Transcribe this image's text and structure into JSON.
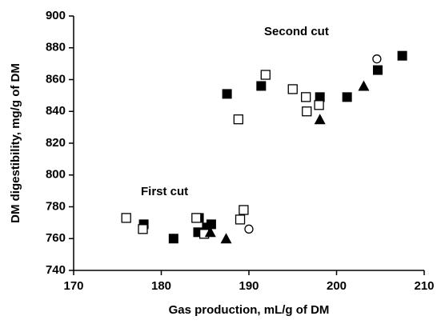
{
  "chart_data": {
    "type": "scatter",
    "x_label": "Gas production, mL/g of DM",
    "y_label": "DM digestibility, mg/g of DM",
    "annotations": [
      "Second cut",
      "First cut"
    ],
    "xlim": [
      170,
      210
    ],
    "xticks": [
      170,
      180,
      190,
      200,
      210
    ],
    "ylim": [
      740,
      900
    ],
    "yticks": [
      740,
      760,
      780,
      800,
      820,
      840,
      860,
      880,
      900
    ],
    "series": [
      {
        "marker": "square-filled",
        "color": "#000000",
        "x": [
          187.5,
          191.4,
          198.1,
          201.2,
          204.7,
          207.5,
          178.0,
          181.4,
          184.3,
          184.2,
          185.2,
          185.7
        ],
        "values": [
          851,
          856,
          849,
          849,
          866,
          875,
          769,
          760,
          773,
          764,
          767,
          769
        ]
      },
      {
        "marker": "square-open",
        "color": "#000000",
        "x": [
          188.8,
          191.9,
          195.0,
          196.5,
          196.6,
          198.0,
          176.0,
          177.9,
          184.0,
          184.9,
          189.0,
          189.4
        ],
        "values": [
          835,
          863,
          854,
          849,
          840,
          844,
          773,
          766,
          773,
          763,
          772,
          778
        ]
      },
      {
        "marker": "triangle-filled",
        "color": "#000000",
        "x": [
          198.1,
          203.1,
          187.4,
          185.6
        ],
        "values": [
          835,
          856,
          760,
          764
        ]
      },
      {
        "marker": "circle-open",
        "color": "#000000",
        "x": [
          204.6,
          190.0
        ],
        "values": [
          873,
          766
        ]
      }
    ]
  }
}
